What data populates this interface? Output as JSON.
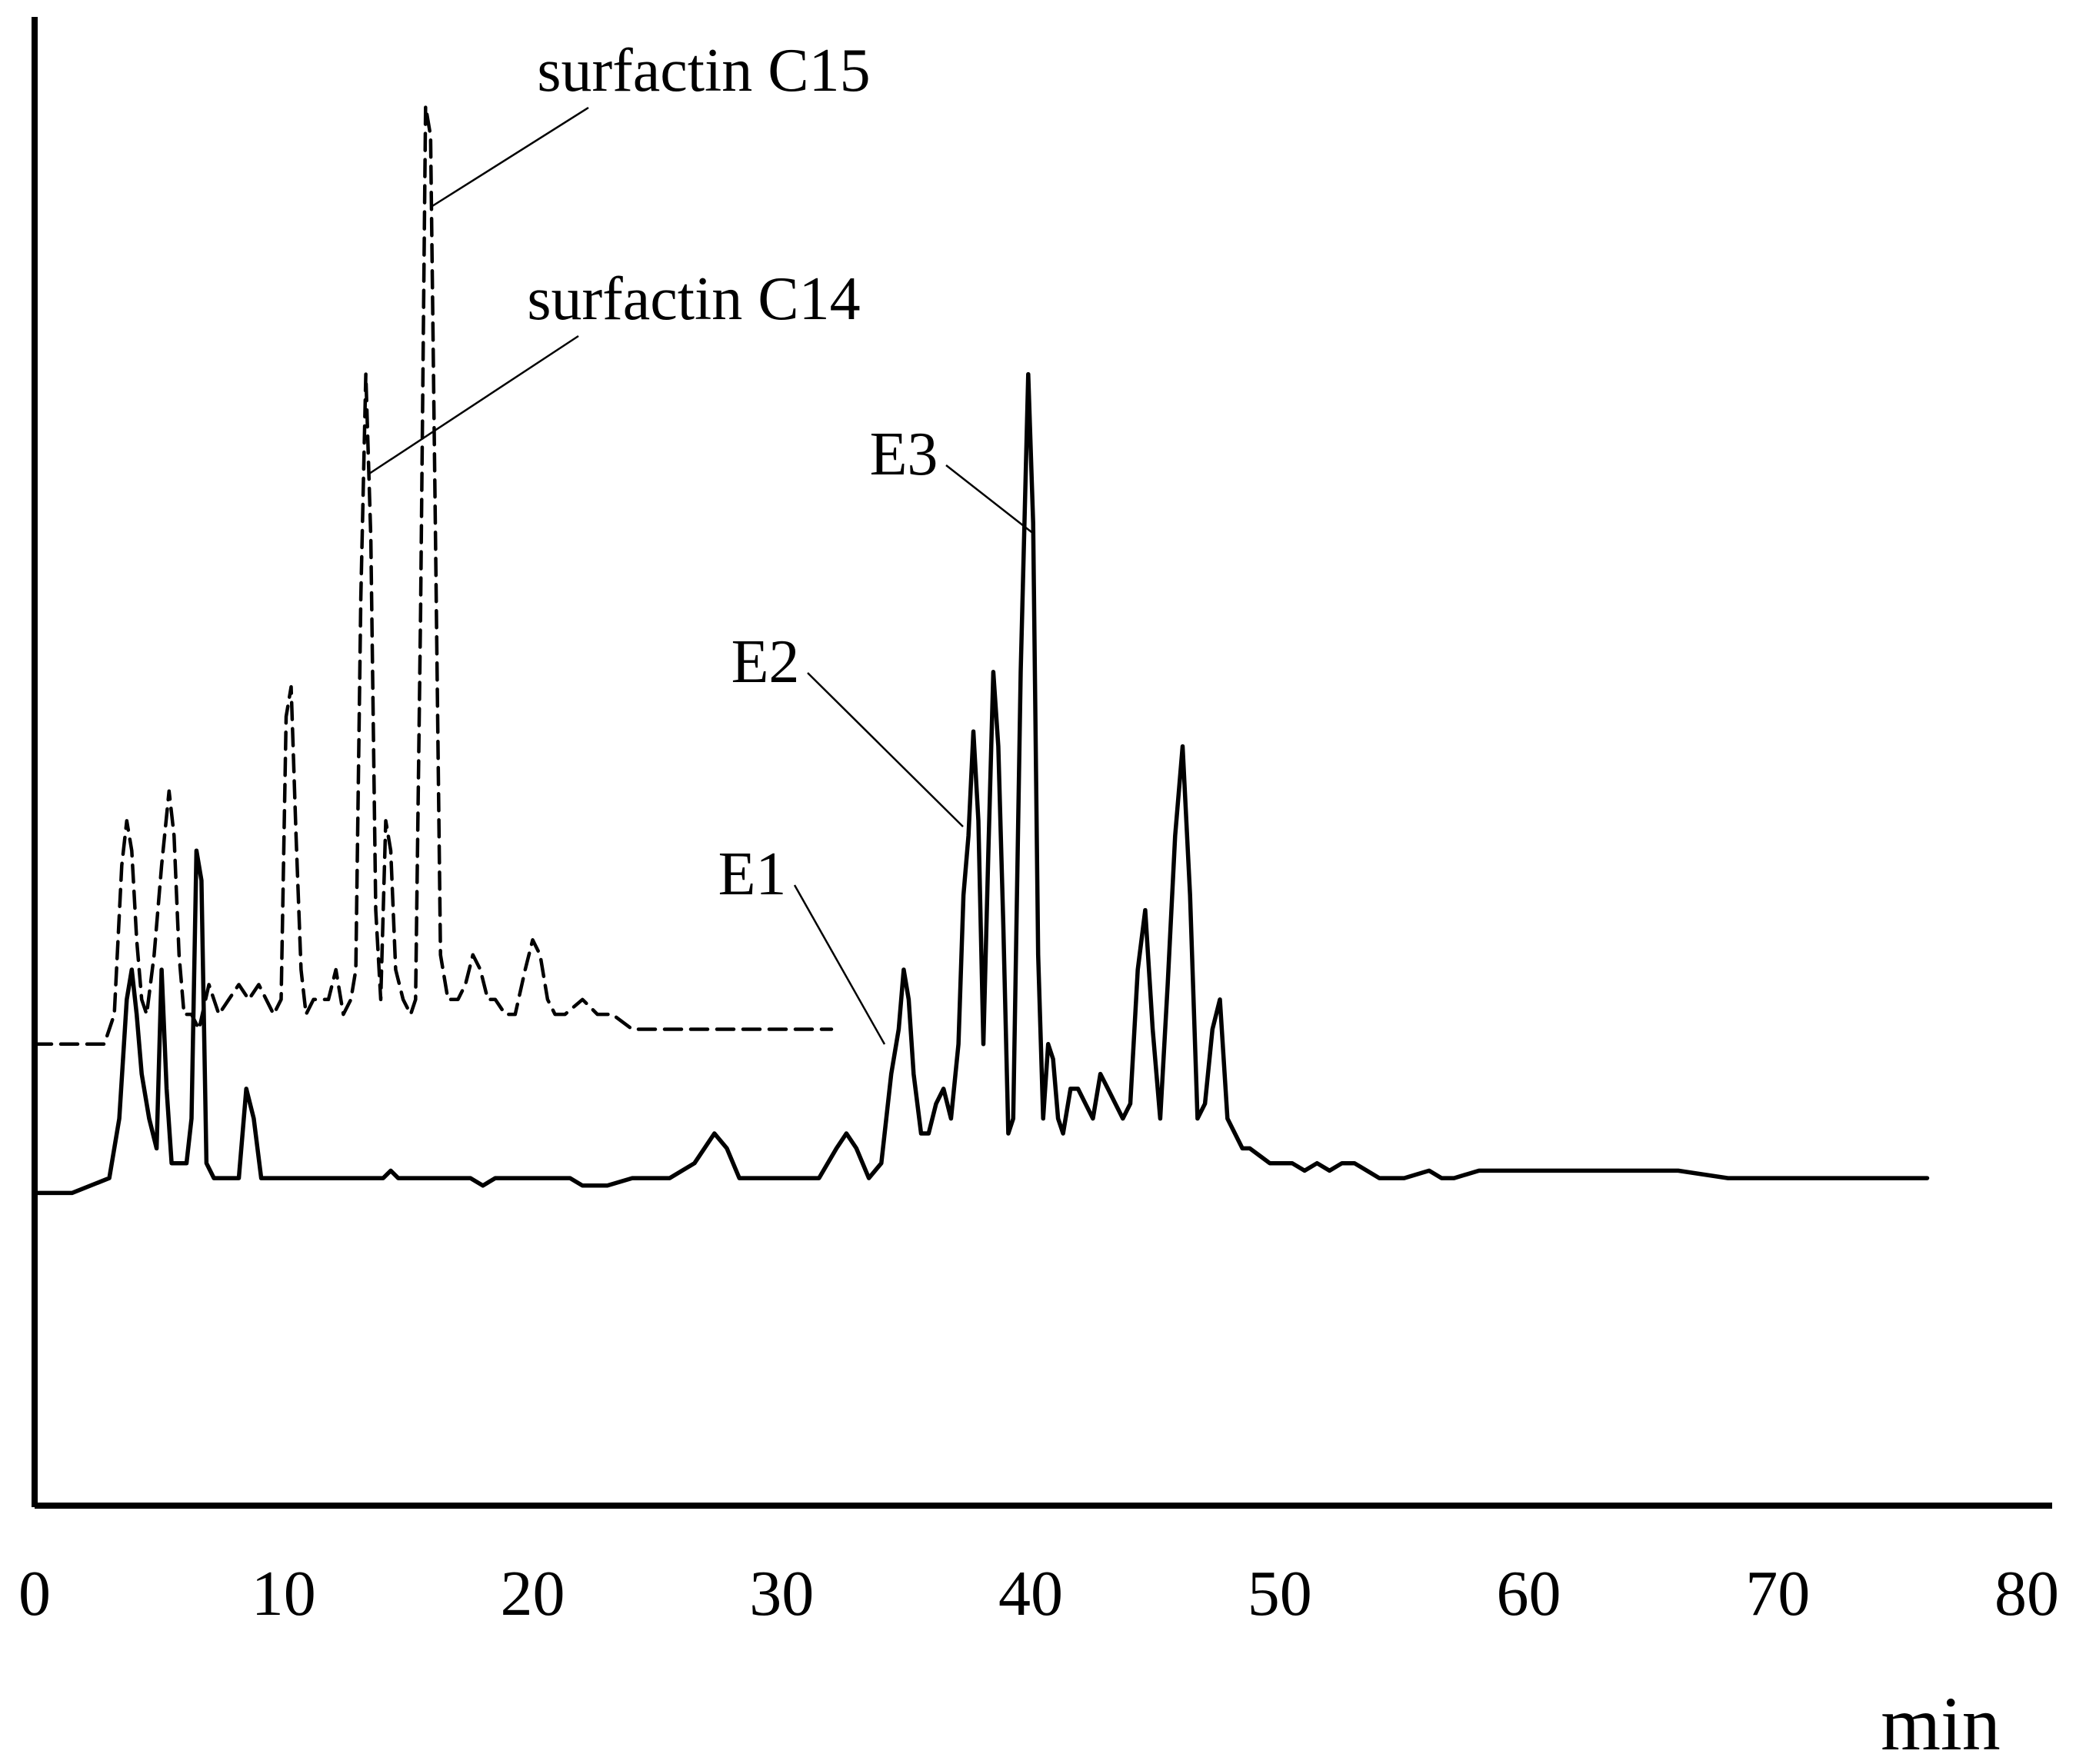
{
  "chart_data": {
    "type": "line",
    "title": "",
    "xlabel": "min",
    "ylabel": "",
    "xlim": [
      0,
      80
    ],
    "ylim": [
      0,
      1
    ],
    "grid": false,
    "x_ticks": [
      "0",
      "10",
      "20",
      "30",
      "40",
      "50",
      "60",
      "70",
      "80"
    ],
    "series": [
      {
        "style": "dashed",
        "color": "#000000",
        "x": [
          0,
          2.8,
          3.2,
          3.5,
          3.7,
          3.9,
          4.1,
          4.3,
          4.5,
          4.8,
          5.1,
          5.4,
          5.6,
          5.8,
          6.0,
          6.3,
          6.6,
          7.0,
          7.4,
          7.8,
          8.2,
          8.6,
          9.0,
          9.3,
          9.6,
          9.9,
          10.1,
          10.3,
          10.5,
          10.7,
          10.9,
          11.2,
          11.5,
          11.8,
          12.1,
          12.4,
          12.7,
          12.9,
          13.1,
          13.3,
          13.5,
          13.7,
          13.9,
          14.1,
          14.3,
          14.5,
          14.8,
          15.1,
          15.3,
          15.5,
          15.7,
          15.9,
          16.1,
          16.3,
          16.6,
          17.0,
          17.3,
          17.6,
          17.9,
          18.2,
          18.5,
          18.9,
          19.3,
          19.7,
          20.0,
          20.3,
          20.6,
          20.9,
          21.3,
          22.0,
          22.6,
          23.2,
          24.0,
          25.0,
          26.5,
          28.0,
          30.0,
          32.0
        ],
        "y": [
          0.31,
          0.31,
          0.33,
          0.43,
          0.46,
          0.44,
          0.38,
          0.34,
          0.33,
          0.37,
          0.43,
          0.48,
          0.45,
          0.37,
          0.33,
          0.33,
          0.32,
          0.35,
          0.33,
          0.34,
          0.35,
          0.34,
          0.35,
          0.34,
          0.33,
          0.34,
          0.53,
          0.55,
          0.45,
          0.36,
          0.33,
          0.34,
          0.34,
          0.34,
          0.36,
          0.33,
          0.34,
          0.36,
          0.61,
          0.76,
          0.65,
          0.4,
          0.34,
          0.46,
          0.44,
          0.36,
          0.34,
          0.33,
          0.34,
          0.6,
          0.94,
          0.92,
          0.65,
          0.37,
          0.34,
          0.34,
          0.35,
          0.37,
          0.36,
          0.34,
          0.34,
          0.33,
          0.33,
          0.36,
          0.38,
          0.37,
          0.34,
          0.33,
          0.33,
          0.34,
          0.33,
          0.33,
          0.32,
          0.32,
          0.32,
          0.32,
          0.32,
          0.32
        ]
      },
      {
        "style": "solid",
        "color": "#000000",
        "x": [
          0,
          1.5,
          3.0,
          3.4,
          3.7,
          3.9,
          4.1,
          4.3,
          4.6,
          4.9,
          5.1,
          5.3,
          5.5,
          5.8,
          6.1,
          6.3,
          6.5,
          6.7,
          6.9,
          7.2,
          7.6,
          8.2,
          8.5,
          8.8,
          9.1,
          9.4,
          9.7,
          10.2,
          11.0,
          12.0,
          13.0,
          14.0,
          14.3,
          14.6,
          16.0,
          17.5,
          18.0,
          18.5,
          19.0,
          20.0,
          21.5,
          22.0,
          23.0,
          24.0,
          25.5,
          26.5,
          27.3,
          27.8,
          28.3,
          28.8,
          30.0,
          31.5,
          32.2,
          32.6,
          33.0,
          33.5,
          34.0,
          34.4,
          34.7,
          34.9,
          35.1,
          35.3,
          35.6,
          35.9,
          36.2,
          36.5,
          36.8,
          37.1,
          37.3,
          37.5,
          37.7,
          37.9,
          38.1,
          38.3,
          38.5,
          38.7,
          38.9,
          39.1,
          39.3,
          39.6,
          39.9,
          40.1,
          40.3,
          40.5,
          40.7,
          40.9,
          41.1,
          41.3,
          41.6,
          41.9,
          42.2,
          42.5,
          42.8,
          43.1,
          43.4,
          43.7,
          44.0,
          44.3,
          44.6,
          44.9,
          45.2,
          45.5,
          45.8,
          46.1,
          46.4,
          46.7,
          47.0,
          47.3,
          47.6,
          47.9,
          48.2,
          48.5,
          48.8,
          49.2,
          49.6,
          50.0,
          50.5,
          51.0,
          51.5,
          52.0,
          52.5,
          53.0,
          53.5,
          54.0,
          55.0,
          56.0,
          56.5,
          57.0,
          58.0,
          59.0,
          60.0,
          62.0,
          64.0,
          66.0,
          68.0,
          70.0,
          72.0,
          74.0,
          76.0
        ],
        "y": [
          0.21,
          0.21,
          0.22,
          0.26,
          0.34,
          0.36,
          0.33,
          0.29,
          0.26,
          0.24,
          0.36,
          0.28,
          0.23,
          0.23,
          0.23,
          0.26,
          0.44,
          0.42,
          0.23,
          0.22,
          0.22,
          0.22,
          0.28,
          0.26,
          0.22,
          0.22,
          0.22,
          0.22,
          0.22,
          0.22,
          0.22,
          0.22,
          0.225,
          0.22,
          0.22,
          0.22,
          0.215,
          0.22,
          0.22,
          0.22,
          0.22,
          0.215,
          0.215,
          0.22,
          0.22,
          0.23,
          0.25,
          0.24,
          0.22,
          0.22,
          0.22,
          0.22,
          0.24,
          0.25,
          0.24,
          0.22,
          0.23,
          0.29,
          0.32,
          0.36,
          0.34,
          0.29,
          0.25,
          0.25,
          0.27,
          0.28,
          0.26,
          0.31,
          0.41,
          0.45,
          0.52,
          0.46,
          0.31,
          0.44,
          0.56,
          0.51,
          0.39,
          0.25,
          0.26,
          0.56,
          0.76,
          0.66,
          0.37,
          0.26,
          0.31,
          0.3,
          0.26,
          0.25,
          0.28,
          0.28,
          0.27,
          0.26,
          0.29,
          0.28,
          0.27,
          0.26,
          0.27,
          0.36,
          0.4,
          0.32,
          0.26,
          0.35,
          0.45,
          0.51,
          0.41,
          0.26,
          0.27,
          0.32,
          0.34,
          0.26,
          0.25,
          0.24,
          0.24,
          0.235,
          0.23,
          0.23,
          0.23,
          0.225,
          0.23,
          0.225,
          0.23,
          0.23,
          0.225,
          0.22,
          0.22,
          0.225,
          0.22,
          0.22,
          0.225,
          0.225,
          0.225,
          0.225,
          0.225,
          0.225,
          0.22,
          0.22,
          0.22,
          0.22,
          0.22
        ]
      }
    ],
    "annotations": [
      {
        "text": "surfactin C15",
        "x": 15.7,
        "y": 0.92
      },
      {
        "text": "surfactin C14",
        "x": 13.2,
        "y": 0.7
      },
      {
        "text": "E3",
        "x": 40.4,
        "y": 0.69
      },
      {
        "text": "E2",
        "x": 37.4,
        "y": 0.46
      },
      {
        "text": "E1",
        "x": 34.8,
        "y": 0.32
      }
    ]
  }
}
